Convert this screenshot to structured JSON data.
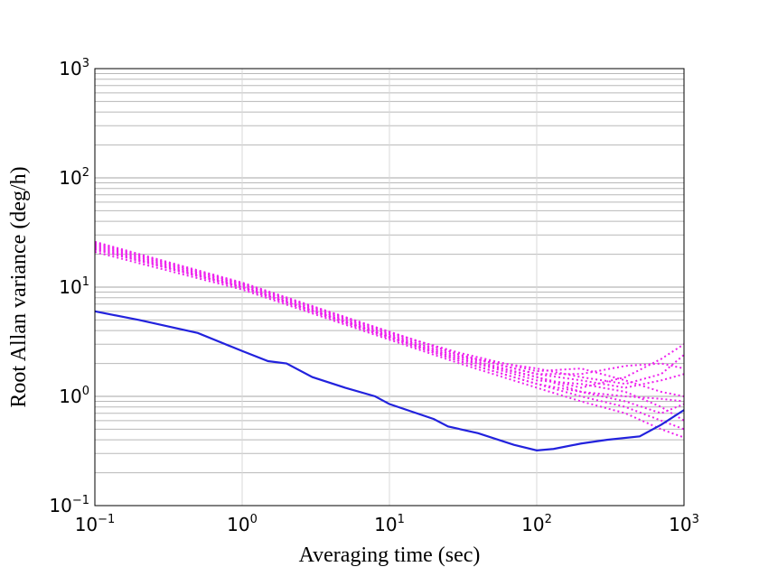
{
  "chart_data": {
    "type": "line",
    "title": "",
    "xlabel": "Averaging time (sec)",
    "ylabel": "Root Allan variance  (deg/h)",
    "xscale": "log",
    "yscale": "log",
    "xlim": [
      0.1,
      1000
    ],
    "ylim": [
      0.1,
      1000
    ],
    "grid": true,
    "legend": "none",
    "x_ticks": [
      {
        "base": "10",
        "exp": "−1"
      },
      {
        "base": "10",
        "exp": "0"
      },
      {
        "base": "10",
        "exp": "1"
      },
      {
        "base": "10",
        "exp": "2"
      },
      {
        "base": "10",
        "exp": "3"
      }
    ],
    "y_ticks": [
      {
        "base": "10",
        "exp": "−1"
      },
      {
        "base": "10",
        "exp": "0"
      },
      {
        "base": "10",
        "exp": "1"
      },
      {
        "base": "10",
        "exp": "2"
      },
      {
        "base": "10",
        "exp": "3"
      }
    ],
    "colors": {
      "primary": "#2222dd",
      "ensemble": "#ee22ee",
      "grid": "#b8b8b8"
    },
    "series": [
      {
        "style": "solid",
        "color": "#2222dd",
        "x": [
          0.1,
          0.2,
          0.5,
          1,
          1.5,
          2,
          3,
          5,
          8,
          10,
          20,
          25,
          40,
          70,
          100,
          130,
          200,
          300,
          500,
          700,
          1000
        ],
        "y": [
          6,
          5,
          3.8,
          2.6,
          2.1,
          2,
          1.5,
          1.2,
          1.0,
          0.85,
          0.62,
          0.53,
          0.46,
          0.36,
          0.32,
          0.33,
          0.37,
          0.4,
          0.43,
          0.55,
          0.75
        ]
      },
      {
        "style": "dotted",
        "color": "#ee22ee",
        "x": [
          0.1,
          1,
          10,
          30,
          100,
          200,
          400,
          700,
          1000
        ],
        "y": [
          22,
          10,
          3.5,
          2.1,
          1.3,
          1.1,
          1.0,
          0.95,
          0.9
        ]
      },
      {
        "style": "dotted",
        "color": "#ee22ee",
        "x": [
          0.1,
          1,
          10,
          30,
          100,
          200,
          400,
          700,
          1000
        ],
        "y": [
          24,
          10.5,
          3.7,
          2.3,
          1.5,
          1.2,
          1.5,
          2.2,
          3.0
        ]
      },
      {
        "style": "dotted",
        "color": "#ee22ee",
        "x": [
          0.1,
          1,
          10,
          30,
          100,
          200,
          400,
          700,
          1000
        ],
        "y": [
          26,
          11,
          3.9,
          2.4,
          1.6,
          1.4,
          1.2,
          1.4,
          1.6
        ]
      },
      {
        "style": "dotted",
        "color": "#ee22ee",
        "x": [
          0.1,
          1,
          10,
          30,
          100,
          200,
          400,
          700,
          1000
        ],
        "y": [
          21,
          9.5,
          3.3,
          2.0,
          1.2,
          0.9,
          0.7,
          0.5,
          0.42
        ]
      },
      {
        "style": "dotted",
        "color": "#ee22ee",
        "x": [
          0.1,
          1,
          10,
          30,
          100,
          200,
          400,
          700,
          1000
        ],
        "y": [
          23,
          10,
          3.6,
          2.2,
          1.4,
          1.3,
          1.1,
          0.8,
          0.6
        ]
      },
      {
        "style": "dotted",
        "color": "#ee22ee",
        "x": [
          0.1,
          1,
          10,
          30,
          100,
          200,
          400,
          700,
          1000
        ],
        "y": [
          25,
          10.8,
          3.8,
          2.5,
          1.7,
          1.8,
          1.4,
          1.1,
          1.0
        ]
      },
      {
        "style": "dotted",
        "color": "#ee22ee",
        "x": [
          0.1,
          1,
          10,
          30,
          100,
          200,
          400,
          700,
          1000
        ],
        "y": [
          22.5,
          9.8,
          3.4,
          2.1,
          1.3,
          1.0,
          0.8,
          0.6,
          0.5
        ]
      },
      {
        "style": "dotted",
        "color": "#ee22ee",
        "x": [
          0.1,
          1,
          10,
          30,
          100,
          200,
          400,
          700,
          1000
        ],
        "y": [
          24.5,
          10.3,
          3.7,
          2.3,
          1.8,
          1.5,
          1.3,
          1.6,
          2.4
        ]
      },
      {
        "style": "dotted",
        "color": "#ee22ee",
        "x": [
          0.1,
          1,
          10,
          30,
          100,
          200,
          400,
          700,
          1000
        ],
        "y": [
          23.5,
          10.1,
          3.5,
          2.2,
          1.5,
          1.1,
          0.9,
          0.7,
          0.85
        ]
      },
      {
        "style": "dotted",
        "color": "#ee22ee",
        "x": [
          0.1,
          1,
          10,
          30,
          100,
          200,
          400,
          700,
          1000
        ],
        "y": [
          25.5,
          10.7,
          3.9,
          2.4,
          1.6,
          1.6,
          1.9,
          2.0,
          1.8
        ]
      }
    ]
  }
}
